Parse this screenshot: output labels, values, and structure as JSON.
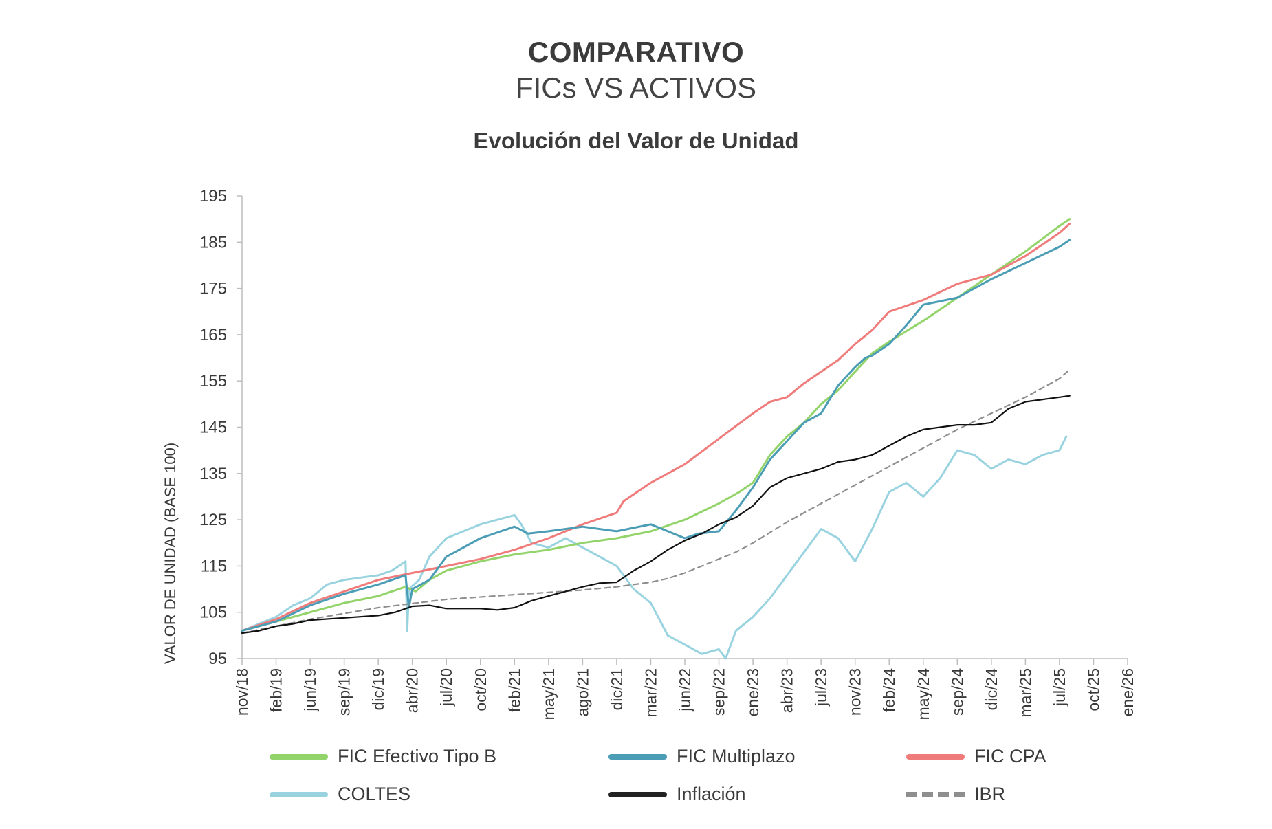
{
  "header": {
    "title": "COMPARATIVO",
    "subtitle": "FICs VS ACTIVOS",
    "chart_title": "Evolución del Valor de Unidad"
  },
  "chart_data": {
    "type": "line",
    "title": "Evolución del Valor de Unidad",
    "ylabel": "VALOR DE UNIDAD (BASE 100)",
    "xlabel": "",
    "ylim": [
      95,
      195
    ],
    "yticks": [
      95,
      105,
      115,
      125,
      135,
      145,
      155,
      165,
      175,
      185,
      195
    ],
    "xlim": [
      0,
      26
    ],
    "xticks": [
      "nov/18",
      "feb/19",
      "jun/19",
      "sep/19",
      "dic/19",
      "abr/20",
      "jul/20",
      "oct/20",
      "feb/21",
      "may/21",
      "ago/21",
      "dic/21",
      "mar/22",
      "jun/22",
      "sep/22",
      "ene/23",
      "abr/23",
      "jul/23",
      "nov/23",
      "feb/24",
      "may/24",
      "sep/24",
      "dic/24",
      "mar/25",
      "jul/25",
      "oct/25",
      "ene/26"
    ],
    "legend_position": "bottom",
    "series": [
      {
        "name": "FIC Efectivo Tipo B",
        "color": "#93d46a",
        "style": "solid",
        "x": [
          0,
          1,
          2,
          3,
          4,
          4.8,
          5.1,
          5.5,
          6,
          7,
          8,
          9,
          10,
          11,
          12,
          13,
          14,
          14.6,
          15,
          15.5,
          16,
          16.5,
          17,
          17.5,
          18,
          18.5,
          19,
          20,
          21,
          22,
          23,
          24,
          24.3
        ],
        "y": [
          101,
          103,
          105,
          107,
          108.5,
          110.5,
          109.5,
          112,
          114,
          116,
          117.5,
          118.5,
          120,
          121,
          122.5,
          125,
          128.5,
          131,
          133,
          139,
          143,
          146,
          150,
          153,
          157,
          161,
          163.5,
          168,
          173,
          178,
          183,
          188.5,
          190
        ]
      },
      {
        "name": "FIC Multiplazo",
        "color": "#4a9db5",
        "style": "solid",
        "x": [
          0,
          1,
          2,
          3,
          4,
          4.8,
          4.9,
          5.0,
          5.5,
          6,
          7,
          8,
          8.4,
          9,
          10,
          11,
          12,
          13,
          13.4,
          14,
          14.5,
          15,
          15.5,
          16,
          16.5,
          17,
          17.5,
          18,
          18.3,
          18.5,
          19,
          19.5,
          20,
          21,
          22,
          23,
          24,
          24.3
        ],
        "y": [
          101,
          103,
          106.5,
          109,
          111,
          113,
          106,
          110,
          112,
          117,
          121,
          123.5,
          122,
          122.5,
          123.5,
          122.5,
          124,
          121,
          122,
          122.5,
          127,
          132,
          138,
          142,
          146,
          148,
          154,
          158,
          160,
          160.5,
          163,
          167,
          171.5,
          173,
          177,
          180.5,
          184,
          185.5
        ]
      },
      {
        "name": "FIC CPA",
        "color": "#f07b7b",
        "style": "solid",
        "x": [
          0,
          1,
          2,
          3,
          4,
          5,
          6,
          7,
          8,
          9,
          10,
          11,
          11.2,
          12,
          13,
          14,
          15,
          15.5,
          16,
          16.5,
          17,
          17.5,
          18,
          18.5,
          19,
          20,
          21,
          22,
          23,
          24,
          24.3
        ],
        "y": [
          101,
          103.5,
          107,
          109.5,
          112,
          113.5,
          115,
          116.5,
          118.5,
          121,
          124,
          126.5,
          129,
          133,
          137,
          142.5,
          148,
          150.5,
          151.5,
          154.5,
          157,
          159.5,
          163,
          166,
          170,
          172.5,
          176,
          178,
          182,
          187,
          189
        ]
      },
      {
        "name": "COLTES",
        "color": "#99d3e0",
        "style": "solid",
        "x": [
          0,
          0.5,
          1,
          1.5,
          2,
          2.5,
          3,
          3.5,
          4,
          4.4,
          4.8,
          4.85,
          4.9,
          5.2,
          5.5,
          6,
          6.5,
          7,
          7.5,
          8,
          8.2,
          8.5,
          9,
          9.5,
          10,
          10.5,
          11,
          11.5,
          12,
          12.5,
          13,
          13.5,
          14,
          14.2,
          14.5,
          15,
          15.5,
          16,
          16.5,
          17,
          17.5,
          18,
          18.5,
          19,
          19.5,
          20,
          20.5,
          21,
          21.5,
          22,
          22.5,
          23,
          23.5,
          24,
          24.2
        ],
        "y": [
          101,
          102.5,
          104,
          106.5,
          108,
          111,
          112,
          112.5,
          113,
          114,
          116,
          101,
          110,
          112,
          117,
          121,
          122.5,
          124,
          125,
          126,
          124,
          120,
          119,
          121,
          119,
          117,
          115,
          110,
          107,
          100,
          98,
          96,
          97,
          95,
          101,
          104,
          108,
          113,
          118,
          123,
          121,
          116,
          123,
          131,
          133,
          130,
          134,
          140,
          139,
          136,
          138,
          137,
          139,
          140,
          143
        ]
      },
      {
        "name": "Inflación",
        "color": "#111111",
        "style": "solid",
        "x": [
          0,
          0.5,
          1,
          1.5,
          2,
          3,
          4,
          4.5,
          5,
          5.5,
          6,
          7,
          7.5,
          8,
          8.5,
          9,
          9.5,
          10,
          10.5,
          11,
          11.5,
          12,
          12.5,
          13,
          13.5,
          14,
          14.5,
          15,
          15.5,
          16,
          16.5,
          17,
          17.5,
          18,
          18.5,
          19,
          19.5,
          20,
          20.5,
          21,
          21.5,
          22,
          22.5,
          23,
          23.5,
          24,
          24.3
        ],
        "y": [
          100.5,
          101,
          102,
          102.5,
          103.3,
          103.8,
          104.3,
          105,
          106.3,
          106.5,
          105.8,
          105.8,
          105.5,
          106,
          107.5,
          108.5,
          109.5,
          110.5,
          111.3,
          111.5,
          114,
          116,
          118.5,
          120.5,
          122,
          124,
          125.5,
          128,
          132,
          134,
          135,
          136,
          137.5,
          138,
          139,
          141,
          143,
          144.5,
          145,
          145.5,
          145.5,
          146,
          149,
          150.5,
          151,
          151.5,
          151.8
        ]
      },
      {
        "name": "IBR",
        "color": "#8e8e8e",
        "style": "dashed",
        "x": [
          0,
          2,
          4,
          6,
          8,
          10,
          11,
          12,
          12.5,
          13,
          13.5,
          14,
          14.5,
          15,
          16,
          17,
          18,
          19,
          20,
          21,
          22,
          23,
          24,
          24.3
        ],
        "y": [
          100.5,
          103.5,
          106,
          107.8,
          108.8,
          109.8,
          110.5,
          111.5,
          112.3,
          113.5,
          115,
          116.5,
          118,
          120,
          124.5,
          128.5,
          132.5,
          136.5,
          140.5,
          144.5,
          148,
          151.5,
          155.5,
          157.5
        ]
      }
    ]
  }
}
